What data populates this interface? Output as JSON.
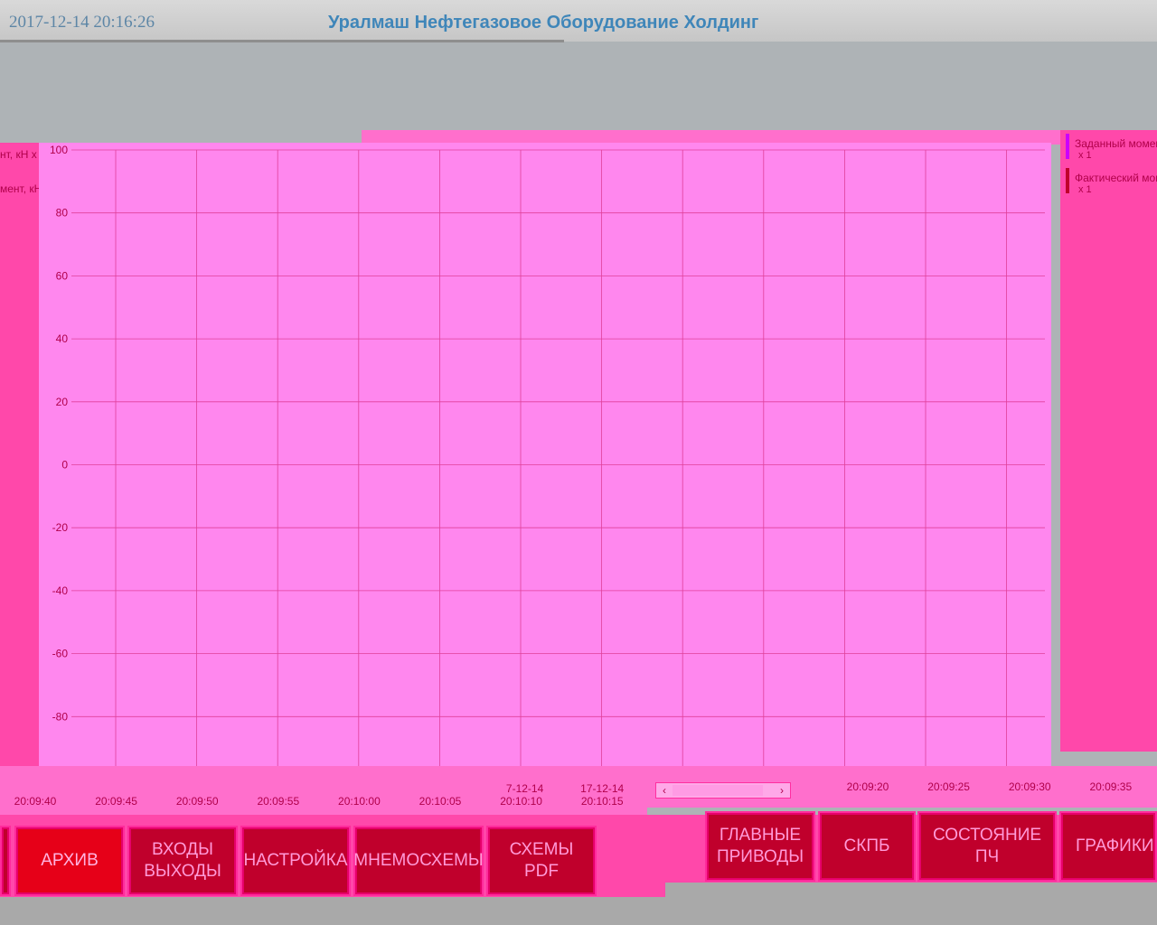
{
  "header": {
    "datetime": "2017-12-14 20:16:26",
    "company": "Уралмаш Нефтегазовое Оборудование Холдинг"
  },
  "left_panel": {
    "labels": [
      "нт, кН х",
      "мент, кН"
    ]
  },
  "legend": [
    {
      "name": "Заданный момент",
      "scale": "x 1",
      "color": "#cc00ff"
    },
    {
      "name": "Фактический момент",
      "scale": "x 1",
      "color": "#c0002c"
    }
  ],
  "chart_data": {
    "type": "line",
    "y_ticks": [
      "100",
      "80",
      "60",
      "40",
      "20",
      "0",
      "-20",
      "-40",
      "-60",
      "-80"
    ],
    "ylim": [
      -100,
      100
    ],
    "grid": true,
    "x_ticks_left": [
      "20:09:40",
      "20:09:45",
      "20:09:50",
      "20:09:55",
      "20:10:00",
      "20:10:05",
      "20:10:10",
      "20:10:15"
    ],
    "x_dates_left": [
      "7-12-14",
      "17-12-14"
    ],
    "x_ticks_right": [
      "20:09:20",
      "20:09:25",
      "20:09:30",
      "20:09:35"
    ],
    "series": []
  },
  "scrollbar": {
    "left_arrow": "‹",
    "right_arrow": "›"
  },
  "nav": {
    "archive": "АРХИВ",
    "io": "ВХОДЫ\nВЫХОДЫ",
    "settings": "НАСТРОЙКА",
    "mnemo": "МНЕМОСХЕМЫ",
    "schemes": "СХЕМЫ\nPDF",
    "main_drives": "ГЛАВНЫЕ\nПРИВОДЫ",
    "skpb": "СКПБ",
    "vfd_state": "СОСТОЯНИЕ ПЧ",
    "graphs": "ГРАФИКИ"
  }
}
